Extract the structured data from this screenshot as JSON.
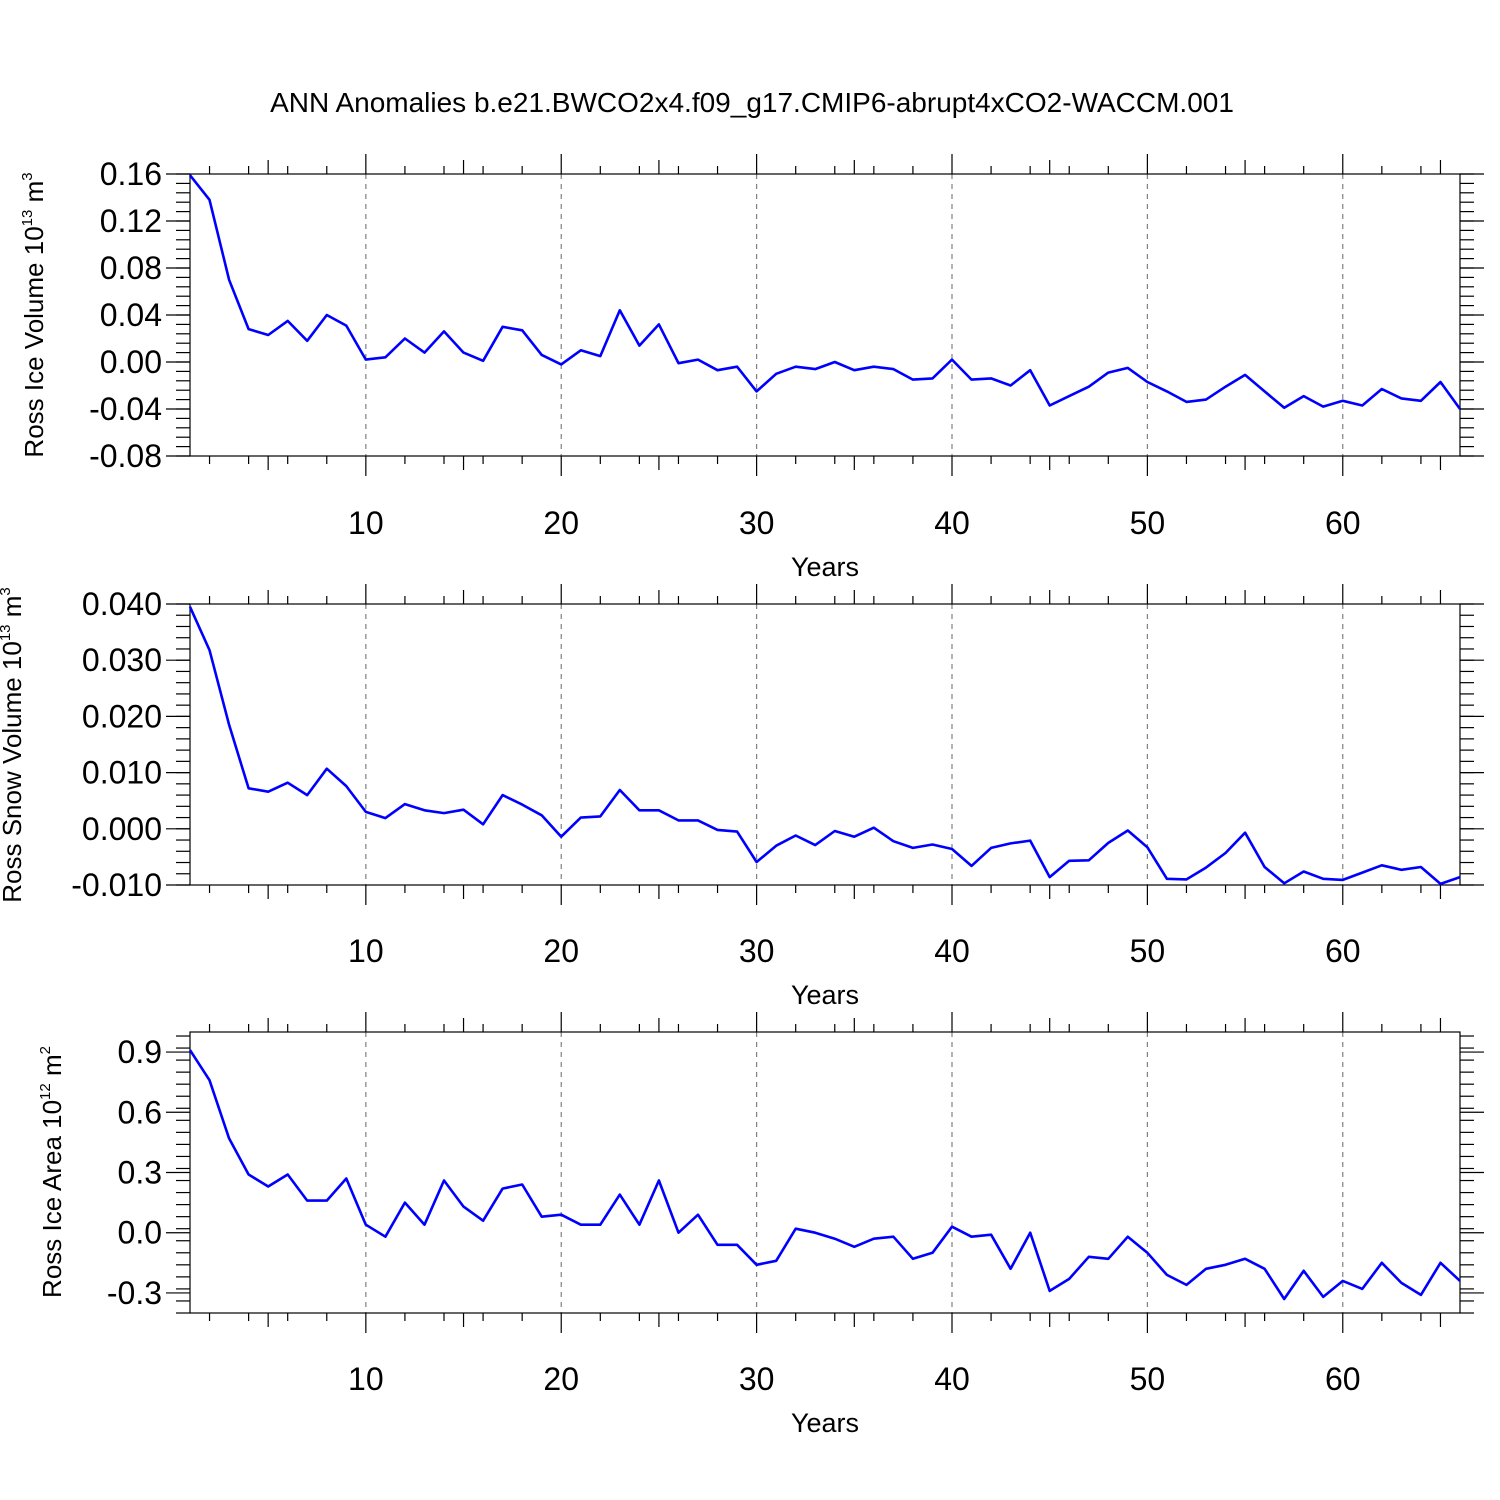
{
  "figure": {
    "title": "ANN Anomalies b.e21.BWCO2x4.f09_g17.CMIP6-abrupt4xCO2-WACCM.001"
  },
  "colors": {
    "line": "#0000ff",
    "axes": "#000000",
    "grid": "#808080",
    "background": "#ffffff"
  },
  "chart_data": [
    {
      "type": "line",
      "ylabel": {
        "text": "Ross Ice Volume 10",
        "exp": "13",
        "unit": " m",
        "unit_exp": "3"
      },
      "xlabel": "Years",
      "xlim": [
        1,
        66
      ],
      "ylim": [
        -0.08,
        0.16
      ],
      "x_ticks": [
        10,
        20,
        30,
        40,
        50,
        60
      ],
      "y_ticks": [
        -0.08,
        -0.04,
        0.0,
        0.04,
        0.08,
        0.12,
        0.16
      ],
      "y_tick_labels": [
        "-0.08",
        "-0.04",
        "0.00",
        "0.04",
        "0.08",
        "0.12",
        "0.16"
      ],
      "y_minor_step": 0.008,
      "grid": "vertical dashed at major x ticks",
      "x_start": 1,
      "series": [
        {
          "values": [
            0.159,
            0.138,
            0.07,
            0.028,
            0.023,
            0.035,
            0.018,
            0.04,
            0.031,
            0.002,
            0.004,
            0.02,
            0.008,
            0.026,
            0.008,
            0.001,
            0.03,
            0.027,
            0.006,
            -0.002,
            0.01,
            0.005,
            0.044,
            0.014,
            0.032,
            -0.001,
            0.002,
            -0.007,
            -0.004,
            -0.025,
            -0.01,
            -0.004,
            -0.006,
            0.0,
            -0.007,
            -0.004,
            -0.006,
            -0.015,
            -0.014,
            0.002,
            -0.015,
            -0.014,
            -0.02,
            -0.007,
            -0.037,
            -0.029,
            -0.021,
            -0.009,
            -0.005,
            -0.017,
            -0.025,
            -0.034,
            -0.032,
            -0.021,
            -0.011,
            -0.025,
            -0.039,
            -0.029,
            -0.038,
            -0.033,
            -0.037,
            -0.023,
            -0.031,
            -0.033,
            -0.017,
            -0.04
          ]
        }
      ]
    },
    {
      "type": "line",
      "ylabel": {
        "text": "Ross Snow Volume 10",
        "exp": "13",
        "unit": " m",
        "unit_exp": "3"
      },
      "xlabel": "Years",
      "xlim": [
        1,
        66
      ],
      "ylim": [
        -0.01,
        0.04
      ],
      "x_ticks": [
        10,
        20,
        30,
        40,
        50,
        60
      ],
      "y_ticks": [
        -0.01,
        0.0,
        0.01,
        0.02,
        0.03,
        0.04
      ],
      "y_tick_labels": [
        "-0.010",
        "0.000",
        "0.010",
        "0.020",
        "0.030",
        "0.040"
      ],
      "y_minor_step": 0.002,
      "grid": "vertical dashed at major x ticks",
      "x_start": 1,
      "series": [
        {
          "values": [
            0.0395,
            0.0318,
            0.0185,
            0.0072,
            0.0066,
            0.0082,
            0.006,
            0.0107,
            0.0076,
            0.003,
            0.0019,
            0.0044,
            0.0033,
            0.0028,
            0.0034,
            0.0008,
            0.006,
            0.0043,
            0.0024,
            -0.0014,
            0.002,
            0.0022,
            0.0069,
            0.0033,
            0.0033,
            0.0015,
            0.0015,
            -0.0002,
            -0.0005,
            -0.0059,
            -0.003,
            -0.0012,
            -0.0029,
            -0.0004,
            -0.0014,
            0.0002,
            -0.0022,
            -0.0034,
            -0.0028,
            -0.0036,
            -0.0066,
            -0.0034,
            -0.0026,
            -0.0021,
            -0.0086,
            -0.0057,
            -0.0056,
            -0.0025,
            -0.0003,
            -0.0033,
            -0.0089,
            -0.009,
            -0.0069,
            -0.0043,
            -0.0007,
            -0.0068,
            -0.0097,
            -0.0076,
            -0.0089,
            -0.0091,
            -0.0078,
            -0.0065,
            -0.0073,
            -0.0068,
            -0.0098,
            -0.0086
          ]
        }
      ]
    },
    {
      "type": "line",
      "ylabel": {
        "text": "Ross Ice Area 10",
        "exp": "12",
        "unit": " m",
        "unit_exp": "2"
      },
      "xlabel": "Years",
      "xlim": [
        1,
        66
      ],
      "ylim": [
        -0.4,
        1.0
      ],
      "x_ticks": [
        10,
        20,
        30,
        40,
        50,
        60
      ],
      "y_ticks": [
        -0.3,
        0.0,
        0.3,
        0.6,
        0.9
      ],
      "y_tick_labels": [
        "-0.3",
        "0.0",
        "0.3",
        "0.6",
        "0.9"
      ],
      "y_minor_step": 0.06,
      "grid": "vertical dashed at major x ticks",
      "x_start": 1,
      "series": [
        {
          "values": [
            0.91,
            0.76,
            0.47,
            0.29,
            0.23,
            0.29,
            0.16,
            0.16,
            0.27,
            0.04,
            -0.02,
            0.15,
            0.04,
            0.26,
            0.13,
            0.06,
            0.22,
            0.24,
            0.08,
            0.09,
            0.04,
            0.04,
            0.19,
            0.04,
            0.26,
            0.0,
            0.09,
            -0.06,
            -0.06,
            -0.16,
            -0.14,
            0.02,
            0.0,
            -0.03,
            -0.07,
            -0.03,
            -0.02,
            -0.13,
            -0.1,
            0.03,
            -0.02,
            -0.01,
            -0.18,
            0.0,
            -0.29,
            -0.23,
            -0.12,
            -0.13,
            -0.02,
            -0.1,
            -0.21,
            -0.26,
            -0.18,
            -0.16,
            -0.13,
            -0.18,
            -0.33,
            -0.19,
            -0.32,
            -0.24,
            -0.28,
            -0.15,
            -0.25,
            -0.31,
            -0.15,
            -0.24
          ]
        }
      ]
    }
  ]
}
